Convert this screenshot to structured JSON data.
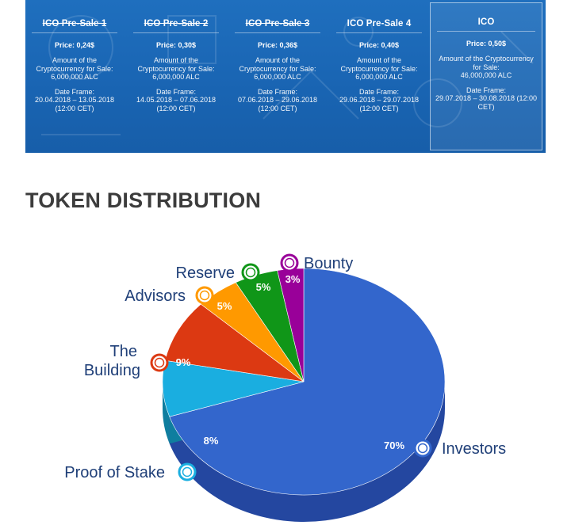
{
  "stages": [
    {
      "title": "ICO Pre-Sale 1",
      "price": "Price: 0,24$",
      "amount_label": "Amount of the Cryptocurrency for Sale:",
      "amount": "6,000,000 ALC",
      "date_label": "Date Frame:",
      "date": "20.04.2018 – 13.05.2018 (12:00 CET)"
    },
    {
      "title": "ICO Pre-Sale 2",
      "price": "Price: 0,30$",
      "amount_label": "Amount of the Cryptocurrency for Sale:",
      "amount": "6,000,000 ALC",
      "date_label": "Date Frame:",
      "date": "14.05.2018 – 07.06.2018 (12:00 CET)"
    },
    {
      "title": "ICO Pre-Sale 3",
      "price": "Price: 0,36$",
      "amount_label": "Amount of the Cryptocurrency for Sale:",
      "amount": "6,000,000 ALC",
      "date_label": "Date Frame:",
      "date": "07.06.2018 – 29.06.2018 (12:00 CET)"
    },
    {
      "title": "ICO Pre-Sale 4",
      "price": "Price: 0,40$",
      "amount_label": "Amount of the Cryptocurrency for Sale:",
      "amount": "6,000,000 ALC",
      "date_label": "Date Frame:",
      "date": "29.06.2018 – 29.07.2018 (12:00 CET)"
    },
    {
      "title": "ICO",
      "price": "Price: 0,50$",
      "amount_label": "Amount of the Cryptocurrency for Sale:",
      "amount": "46,000,000 ALC",
      "date_label": "Date Frame:",
      "date": "29.07.2018 – 30.08.2018 (12:00 CET)"
    }
  ],
  "heading": "TOKEN DISTRIBUTION",
  "chart_data": {
    "type": "pie",
    "title": "",
    "labels": [
      "Investors",
      "Proof of Stake",
      "The Building",
      "Advisors",
      "Reserve",
      "Bounty"
    ],
    "values": [
      70,
      8,
      9,
      5,
      5,
      3
    ],
    "value_labels": [
      "70%",
      "8%",
      "9%",
      "5%",
      "5%",
      "3%"
    ],
    "colors": [
      "#3366cc",
      "#1aaee0",
      "#dc3912",
      "#ff9900",
      "#109618",
      "#990099"
    ],
    "side_colors": [
      "#2447a0",
      "#0f7e9f",
      "#9a2a0c",
      "#b86e00",
      "#0a6910",
      "#6a006a"
    ],
    "legend": "callouts"
  }
}
